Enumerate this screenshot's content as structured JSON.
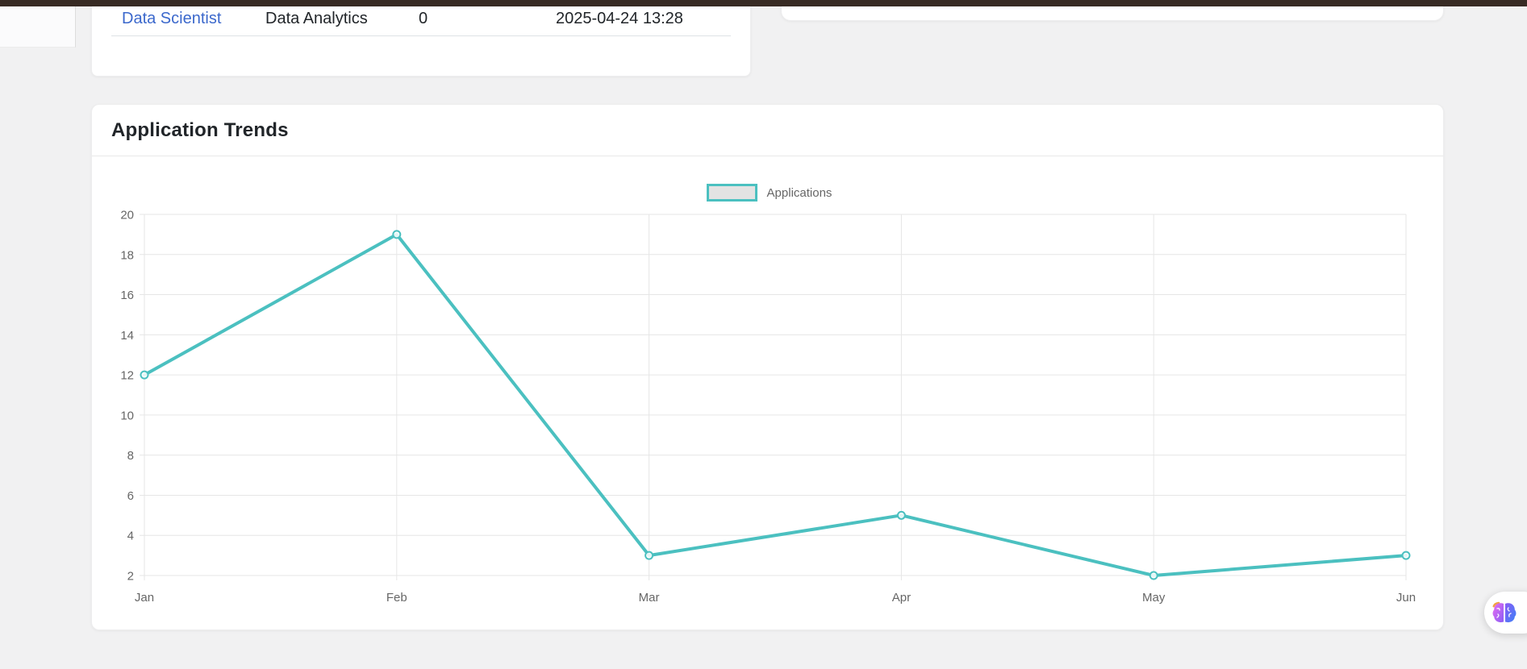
{
  "page": {
    "background": "#f1f1f2",
    "topbar_color": "#382b24"
  },
  "recent_table": {
    "row": {
      "job_title": "Data Scientist",
      "department": "Data Analytics",
      "applications_count": "0",
      "posted_at": "2025-04-24 13:28"
    }
  },
  "trends": {
    "title": "Application Trends"
  },
  "chart_data": {
    "type": "line",
    "title": "Application Trends",
    "categories": [
      "Jan",
      "Feb",
      "Mar",
      "Apr",
      "May",
      "Jun"
    ],
    "series": [
      {
        "name": "Applications",
        "values": [
          12,
          19,
          3,
          5,
          2,
          3
        ]
      }
    ],
    "ylim": [
      2,
      20
    ],
    "yticks": [
      20,
      18,
      16,
      14,
      12,
      10,
      8,
      6,
      4,
      2
    ],
    "grid": true,
    "legend_position": "top-center",
    "colors": {
      "line": "#4bc0c0",
      "point_fill": "#ffffff",
      "legend_fill": "#e3e3e3",
      "grid": "#e6e6e6",
      "tick_text": "#666666"
    }
  },
  "fab": {
    "icon": "brain"
  }
}
